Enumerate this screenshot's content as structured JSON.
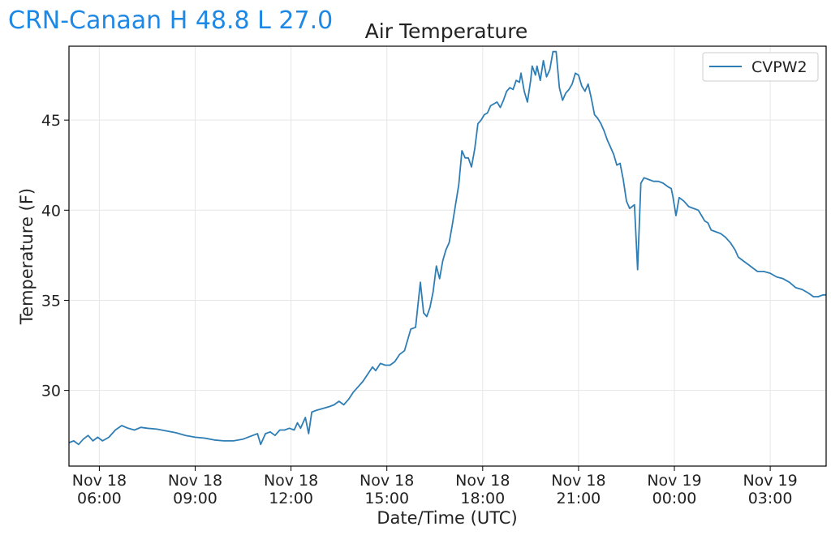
{
  "station_title": "CRN-Canaan H 48.8 L 27.0",
  "chart_data": {
    "type": "line",
    "title": "Air Temperature",
    "xlabel": "Date/Time (UTC)",
    "ylabel": "Temperature (F)",
    "x_ticks": [
      {
        "date": "Nov 18",
        "time": "06:00",
        "hour": 0
      },
      {
        "date": "Nov 18",
        "time": "09:00",
        "hour": 3
      },
      {
        "date": "Nov 18",
        "time": "12:00",
        "hour": 6
      },
      {
        "date": "Nov 18",
        "time": "15:00",
        "hour": 9
      },
      {
        "date": "Nov 18",
        "time": "18:00",
        "hour": 12
      },
      {
        "date": "Nov 18",
        "time": "21:00",
        "hour": 15
      },
      {
        "date": "Nov 19",
        "time": "00:00",
        "hour": 18
      },
      {
        "date": "Nov 19",
        "time": "03:00",
        "hour": 21
      }
    ],
    "y_ticks": [
      30,
      35,
      40,
      45
    ],
    "xlim": [
      -0.95,
      22.75
    ],
    "ylim": [
      25.8,
      49.1
    ],
    "grid": true,
    "legend_position": "top-right",
    "series": [
      {
        "name": "CVPW2",
        "color": "#2e7eb5",
        "points": [
          [
            -0.95,
            27.1
          ],
          [
            -0.8,
            27.2
          ],
          [
            -0.65,
            27.0
          ],
          [
            -0.5,
            27.3
          ],
          [
            -0.35,
            27.5
          ],
          [
            -0.2,
            27.2
          ],
          [
            -0.05,
            27.4
          ],
          [
            0.1,
            27.2
          ],
          [
            0.3,
            27.4
          ],
          [
            0.5,
            27.8
          ],
          [
            0.7,
            28.05
          ],
          [
            0.9,
            27.9
          ],
          [
            1.1,
            27.8
          ],
          [
            1.3,
            27.95
          ],
          [
            1.5,
            27.9
          ],
          [
            1.8,
            27.85
          ],
          [
            2.1,
            27.75
          ],
          [
            2.4,
            27.65
          ],
          [
            2.7,
            27.5
          ],
          [
            3.0,
            27.4
          ],
          [
            3.3,
            27.35
          ],
          [
            3.6,
            27.25
          ],
          [
            3.9,
            27.2
          ],
          [
            4.2,
            27.2
          ],
          [
            4.5,
            27.3
          ],
          [
            4.8,
            27.5
          ],
          [
            4.95,
            27.6
          ],
          [
            5.05,
            27.0
          ],
          [
            5.2,
            27.6
          ],
          [
            5.35,
            27.7
          ],
          [
            5.5,
            27.5
          ],
          [
            5.65,
            27.8
          ],
          [
            5.8,
            27.8
          ],
          [
            5.95,
            27.9
          ],
          [
            6.1,
            27.8
          ],
          [
            6.2,
            28.2
          ],
          [
            6.3,
            27.9
          ],
          [
            6.45,
            28.5
          ],
          [
            6.55,
            27.6
          ],
          [
            6.65,
            28.8
          ],
          [
            6.8,
            28.9
          ],
          [
            7.0,
            29.0
          ],
          [
            7.2,
            29.1
          ],
          [
            7.35,
            29.2
          ],
          [
            7.5,
            29.4
          ],
          [
            7.65,
            29.2
          ],
          [
            7.8,
            29.5
          ],
          [
            7.95,
            29.9
          ],
          [
            8.1,
            30.2
          ],
          [
            8.25,
            30.5
          ],
          [
            8.4,
            30.9
          ],
          [
            8.55,
            31.3
          ],
          [
            8.65,
            31.1
          ],
          [
            8.8,
            31.5
          ],
          [
            8.95,
            31.4
          ],
          [
            9.1,
            31.4
          ],
          [
            9.25,
            31.6
          ],
          [
            9.4,
            32.0
          ],
          [
            9.55,
            32.2
          ],
          [
            9.65,
            32.8
          ],
          [
            9.75,
            33.4
          ],
          [
            9.9,
            33.5
          ],
          [
            10.0,
            35.2
          ],
          [
            10.05,
            36.0
          ],
          [
            10.15,
            34.3
          ],
          [
            10.25,
            34.1
          ],
          [
            10.35,
            34.6
          ],
          [
            10.45,
            35.5
          ],
          [
            10.55,
            36.9
          ],
          [
            10.65,
            36.2
          ],
          [
            10.75,
            37.2
          ],
          [
            10.85,
            37.8
          ],
          [
            10.95,
            38.2
          ],
          [
            11.05,
            39.2
          ],
          [
            11.15,
            40.3
          ],
          [
            11.25,
            41.4
          ],
          [
            11.35,
            43.3
          ],
          [
            11.45,
            42.9
          ],
          [
            11.55,
            42.9
          ],
          [
            11.65,
            42.4
          ],
          [
            11.75,
            43.4
          ],
          [
            11.85,
            44.8
          ],
          [
            11.95,
            45.0
          ],
          [
            12.05,
            45.3
          ],
          [
            12.15,
            45.4
          ],
          [
            12.25,
            45.8
          ],
          [
            12.35,
            45.9
          ],
          [
            12.45,
            46.0
          ],
          [
            12.55,
            45.7
          ],
          [
            12.65,
            46.1
          ],
          [
            12.75,
            46.6
          ],
          [
            12.85,
            46.8
          ],
          [
            12.95,
            46.7
          ],
          [
            13.05,
            47.2
          ],
          [
            13.15,
            47.1
          ],
          [
            13.2,
            47.6
          ],
          [
            13.3,
            46.6
          ],
          [
            13.4,
            46.0
          ],
          [
            13.5,
            47.2
          ],
          [
            13.55,
            48.0
          ],
          [
            13.65,
            47.5
          ],
          [
            13.7,
            48.0
          ],
          [
            13.8,
            47.2
          ],
          [
            13.9,
            48.3
          ],
          [
            14.0,
            47.4
          ],
          [
            14.1,
            47.8
          ],
          [
            14.2,
            48.8
          ],
          [
            14.3,
            48.8
          ],
          [
            14.4,
            46.8
          ],
          [
            14.5,
            46.1
          ],
          [
            14.6,
            46.5
          ],
          [
            14.7,
            46.7
          ],
          [
            14.8,
            47.0
          ],
          [
            14.9,
            47.6
          ],
          [
            15.0,
            47.5
          ],
          [
            15.1,
            46.9
          ],
          [
            15.2,
            46.6
          ],
          [
            15.3,
            47.0
          ],
          [
            15.4,
            46.2
          ],
          [
            15.5,
            45.3
          ],
          [
            15.6,
            45.1
          ],
          [
            15.7,
            44.8
          ],
          [
            15.8,
            44.4
          ],
          [
            15.9,
            43.9
          ],
          [
            16.0,
            43.5
          ],
          [
            16.1,
            43.1
          ],
          [
            16.2,
            42.5
          ],
          [
            16.3,
            42.6
          ],
          [
            16.4,
            41.7
          ],
          [
            16.5,
            40.5
          ],
          [
            16.6,
            40.1
          ],
          [
            16.75,
            40.3
          ],
          [
            16.85,
            36.7
          ],
          [
            16.95,
            41.5
          ],
          [
            17.05,
            41.8
          ],
          [
            17.2,
            41.7
          ],
          [
            17.35,
            41.6
          ],
          [
            17.5,
            41.6
          ],
          [
            17.65,
            41.5
          ],
          [
            17.8,
            41.3
          ],
          [
            17.9,
            41.2
          ],
          [
            17.95,
            40.8
          ],
          [
            18.05,
            39.7
          ],
          [
            18.15,
            40.7
          ],
          [
            18.3,
            40.5
          ],
          [
            18.45,
            40.2
          ],
          [
            18.6,
            40.1
          ],
          [
            18.75,
            40.0
          ],
          [
            18.85,
            39.7
          ],
          [
            18.95,
            39.4
          ],
          [
            19.05,
            39.3
          ],
          [
            19.15,
            38.9
          ],
          [
            19.3,
            38.8
          ],
          [
            19.45,
            38.7
          ],
          [
            19.6,
            38.5
          ],
          [
            19.75,
            38.2
          ],
          [
            19.9,
            37.8
          ],
          [
            20.0,
            37.4
          ],
          [
            20.15,
            37.2
          ],
          [
            20.3,
            37.0
          ],
          [
            20.45,
            36.8
          ],
          [
            20.6,
            36.6
          ],
          [
            20.8,
            36.6
          ],
          [
            21.0,
            36.5
          ],
          [
            21.2,
            36.3
          ],
          [
            21.4,
            36.2
          ],
          [
            21.6,
            36.0
          ],
          [
            21.8,
            35.7
          ],
          [
            22.0,
            35.6
          ],
          [
            22.2,
            35.4
          ],
          [
            22.35,
            35.2
          ],
          [
            22.5,
            35.2
          ],
          [
            22.65,
            35.3
          ],
          [
            22.75,
            35.3
          ]
        ]
      }
    ]
  }
}
